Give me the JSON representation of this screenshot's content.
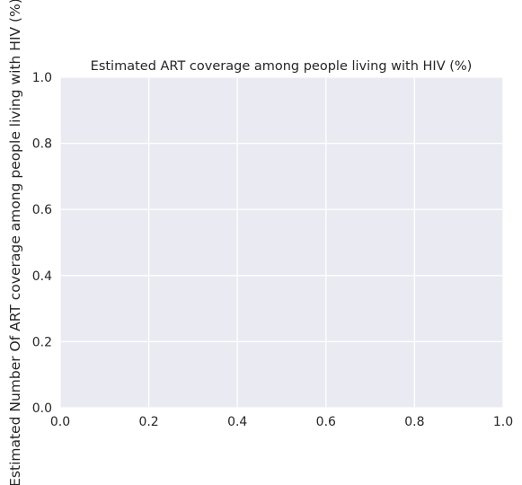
{
  "chart_data": {
    "type": "line",
    "title": "Estimated ART coverage among people living with HIV (%)",
    "xlabel": "",
    "ylabel": "Estimated Number Of ART coverage among people living with HIV (%)",
    "series": [],
    "xlim": [
      0.0,
      1.0
    ],
    "ylim": [
      0.0,
      1.0
    ],
    "xticks": [
      0.0,
      0.2,
      0.4,
      0.6,
      0.8,
      1.0
    ],
    "yticks": [
      0.0,
      0.2,
      0.4,
      0.6,
      0.8,
      1.0
    ],
    "xtick_labels": [
      "0.0",
      "0.2",
      "0.4",
      "0.6",
      "0.8",
      "1.0"
    ],
    "ytick_labels": [
      "0.0",
      "0.2",
      "0.4",
      "0.6",
      "0.8",
      "1.0"
    ],
    "grid": true,
    "legend": "none"
  },
  "colors": {
    "plot_background": "#eaeaf2",
    "grid": "#ffffff",
    "text": "#262626"
  }
}
